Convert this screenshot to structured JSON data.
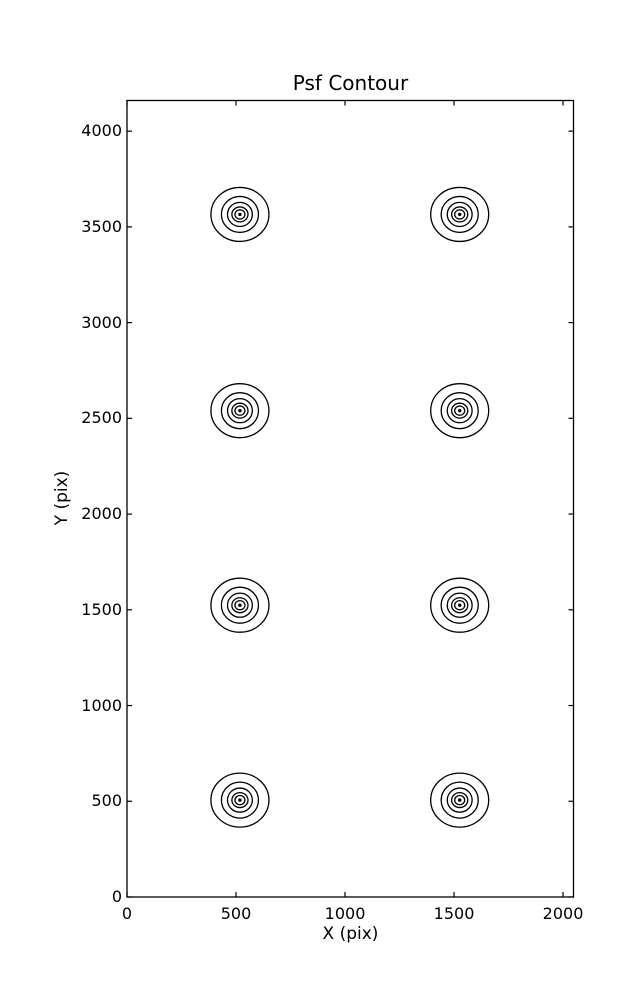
{
  "chart_data": {
    "type": "contour",
    "title": "Psf Contour",
    "xlabel": "X (pix)",
    "ylabel": "Y (pix)",
    "xlim": [
      0,
      2048
    ],
    "ylim": [
      0,
      4160
    ],
    "x_ticks": [
      0,
      500,
      1000,
      1500,
      2000
    ],
    "y_ticks": [
      0,
      500,
      1000,
      1500,
      2000,
      2500,
      3000,
      3500,
      4000
    ],
    "grid": false,
    "tick_direction": "in",
    "axes_frame": true,
    "line_color": "#000000",
    "background_color": "#ffffff",
    "psf_centers": [
      {
        "x": 518,
        "y": 506
      },
      {
        "x": 1526,
        "y": 506
      },
      {
        "x": 518,
        "y": 1524
      },
      {
        "x": 1526,
        "y": 1524
      },
      {
        "x": 518,
        "y": 2540
      },
      {
        "x": 1526,
        "y": 2540
      },
      {
        "x": 518,
        "y": 3565
      },
      {
        "x": 1526,
        "y": 3565
      }
    ],
    "contour_ring_rx": [
      133,
      85,
      57,
      37,
      23
    ],
    "contour_ring_ry": [
      141,
      94,
      63,
      39,
      24
    ],
    "center_dot_rx": 8,
    "center_dot_ry": 9
  }
}
